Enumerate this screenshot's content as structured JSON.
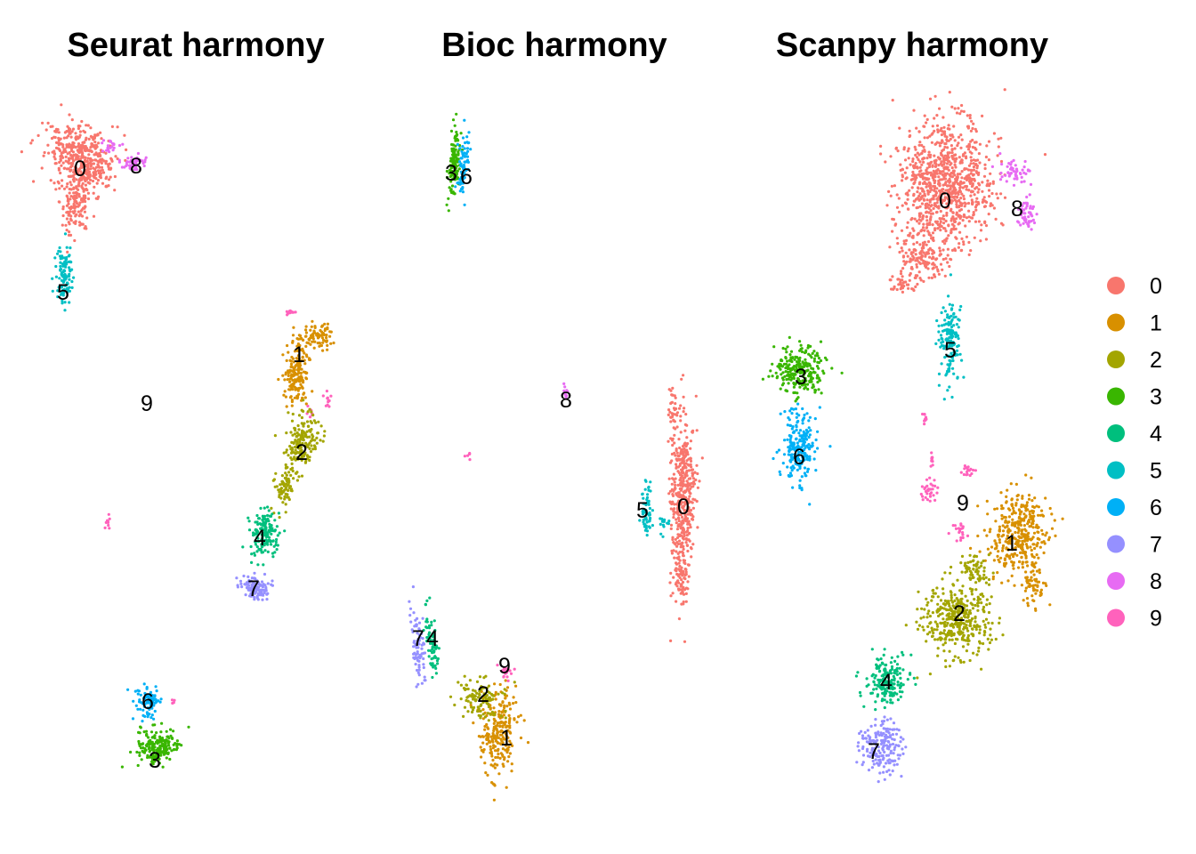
{
  "chart_data": {
    "type": "scatter",
    "panels": [
      {
        "title": "Seurat harmony",
        "clusters": [
          {
            "id": "0",
            "label": "0",
            "color": "#F8766D"
          },
          {
            "id": "1",
            "label": "1",
            "color": "#D89000"
          },
          {
            "id": "2",
            "label": "2",
            "color": "#A3A500"
          },
          {
            "id": "3",
            "label": "3",
            "color": "#39B600"
          },
          {
            "id": "4",
            "label": "4",
            "color": "#00BF7D"
          },
          {
            "id": "5",
            "label": "5",
            "color": "#00BFC4"
          },
          {
            "id": "6",
            "label": "6",
            "color": "#00B0F6"
          },
          {
            "id": "7",
            "label": "7",
            "color": "#9590FF"
          },
          {
            "id": "8",
            "label": "8",
            "color": "#E76BF3"
          },
          {
            "id": "9",
            "label": "9",
            "color": "#FF62BC"
          }
        ]
      },
      {
        "title": "Bioc harmony",
        "clusters": [
          {
            "id": "0",
            "label": "0",
            "color": "#F8766D"
          },
          {
            "id": "1",
            "label": "1",
            "color": "#D89000"
          },
          {
            "id": "2",
            "label": "2",
            "color": "#A3A500"
          },
          {
            "id": "3",
            "label": "3",
            "color": "#39B600"
          },
          {
            "id": "4",
            "label": "4",
            "color": "#00BF7D"
          },
          {
            "id": "5",
            "label": "5",
            "color": "#00BFC4"
          },
          {
            "id": "6",
            "label": "6",
            "color": "#00B0F6"
          },
          {
            "id": "7",
            "label": "7",
            "color": "#9590FF"
          },
          {
            "id": "8",
            "label": "8",
            "color": "#E76BF3"
          },
          {
            "id": "9",
            "label": "9",
            "color": "#FF62BC"
          }
        ]
      },
      {
        "title": "Scanpy harmony",
        "clusters": [
          {
            "id": "0",
            "label": "0",
            "color": "#F8766D"
          },
          {
            "id": "1",
            "label": "1",
            "color": "#D89000"
          },
          {
            "id": "2",
            "label": "2",
            "color": "#A3A500"
          },
          {
            "id": "3",
            "label": "3",
            "color": "#39B600"
          },
          {
            "id": "4",
            "label": "4",
            "color": "#00BF7D"
          },
          {
            "id": "5",
            "label": "5",
            "color": "#00BFC4"
          },
          {
            "id": "6",
            "label": "6",
            "color": "#00B0F6"
          },
          {
            "id": "7",
            "label": "7",
            "color": "#9590FF"
          },
          {
            "id": "8",
            "label": "8",
            "color": "#E76BF3"
          },
          {
            "id": "9",
            "label": "9",
            "color": "#FF62BC"
          }
        ]
      }
    ],
    "legend": {
      "placement": "right",
      "entries": [
        {
          "label": "0",
          "color": "#F8766D"
        },
        {
          "label": "1",
          "color": "#D89000"
        },
        {
          "label": "2",
          "color": "#A3A500"
        },
        {
          "label": "3",
          "color": "#39B600"
        },
        {
          "label": "4",
          "color": "#00BF7D"
        },
        {
          "label": "5",
          "color": "#00BFC4"
        },
        {
          "label": "6",
          "color": "#00B0F6"
        },
        {
          "label": "7",
          "color": "#9590FF"
        },
        {
          "label": "8",
          "color": "#E76BF3"
        },
        {
          "label": "9",
          "color": "#FF62BC"
        }
      ]
    },
    "grid": false,
    "axes": false
  }
}
